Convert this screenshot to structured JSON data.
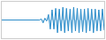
{
  "chart_data": {
    "type": "area",
    "values": [
      0.0,
      0.0,
      0.0,
      0.0,
      0.0,
      0.0,
      0.0,
      0.0,
      0.0,
      0.0,
      0.0,
      0.0,
      0.0,
      0.0,
      0.0,
      0.0,
      0.0,
      0.0,
      0.0,
      0.0,
      0.0,
      0.0,
      0.3,
      -0.8,
      0.5,
      -0.3,
      1.5,
      -2.5,
      2.8,
      -2.5,
      3.2,
      -3.5,
      3.0,
      -3.0,
      3.5,
      -3.5,
      3.2,
      -3.0,
      3.0,
      -3.5,
      3.5,
      -3.0,
      3.2,
      -3.5,
      3.0,
      -3.2,
      3.0,
      -3.5,
      3.2,
      -3.0,
      3.0,
      -3.5,
      3.0,
      -3.0,
      2.8,
      -3.0,
      3.0,
      -2.8
    ],
    "color": "#2b8cca",
    "xlim": [
      0,
      57
    ],
    "ylim": [
      -5,
      5
    ],
    "grid": false,
    "tick_labels": false
  }
}
